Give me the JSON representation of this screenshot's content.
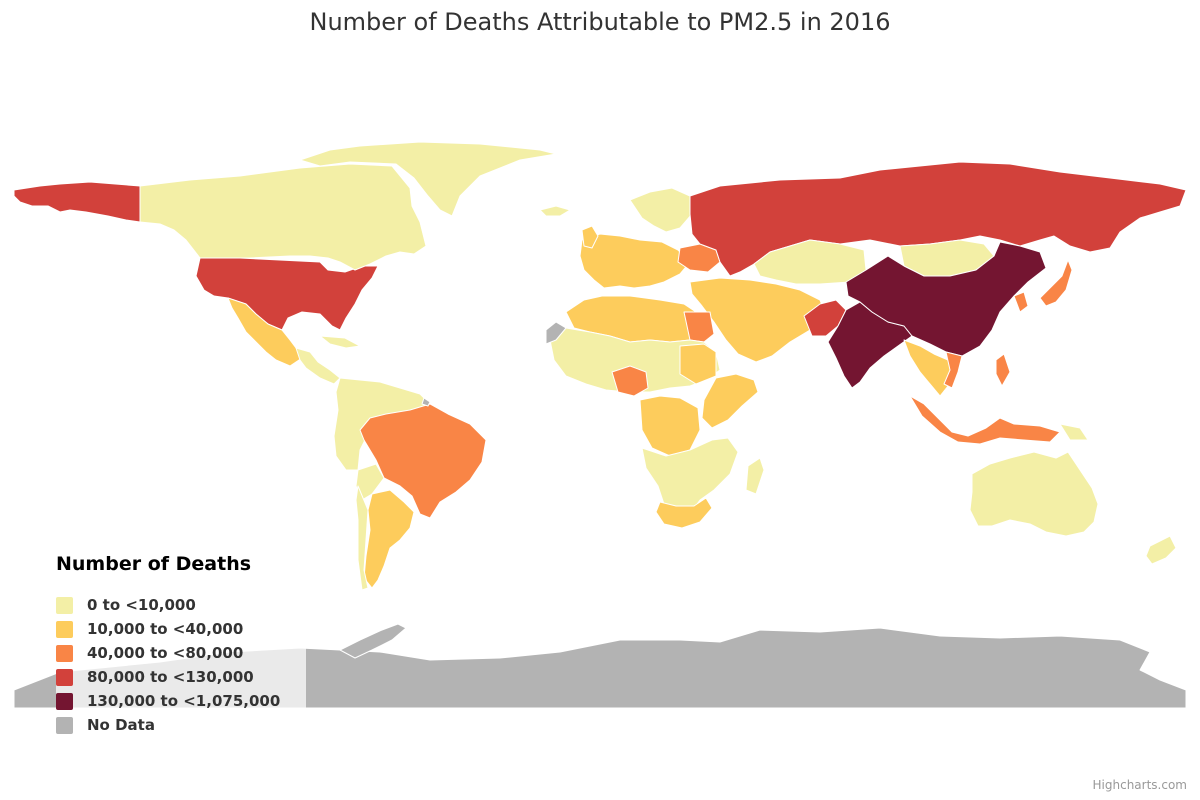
{
  "title": "Number of Deaths Attributable to PM2.5 in 2016",
  "legend": {
    "title": "Number of Deaths",
    "classes": [
      {
        "label": "0 to <10,000",
        "color": "#f3efa6"
      },
      {
        "label": "10,000 to <40,000",
        "color": "#fdcc5c"
      },
      {
        "label": "40,000 to <80,000",
        "color": "#f98546"
      },
      {
        "label": "80,000 to <130,000",
        "color": "#d2413b"
      },
      {
        "label": "130,000 to <1,075,000",
        "color": "#741531"
      },
      {
        "label": "No Data",
        "color": "#b3b3b3"
      }
    ]
  },
  "credits": "Highcharts.com",
  "colors": {
    "border": "#ffffff"
  }
}
